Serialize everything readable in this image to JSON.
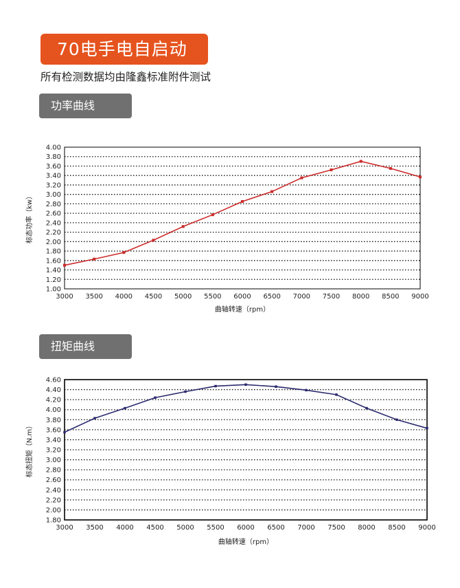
{
  "header": {
    "title": "70电手电自启动",
    "subtitle": "所有检测数据均由隆鑫标准附件测试"
  },
  "sections": {
    "power": {
      "tab_label": "功率曲线"
    },
    "torque": {
      "tab_label": "扭矩曲线"
    }
  },
  "chart_data": [
    {
      "type": "line",
      "title": "",
      "xlabel": "曲轴转速（rpm）",
      "ylabel": "标态功率（kw）",
      "x": [
        3000,
        3500,
        4000,
        4500,
        5000,
        5500,
        6000,
        6500,
        7000,
        7500,
        8000,
        8500,
        9000
      ],
      "xlim": [
        3000,
        9000
      ],
      "ylim": [
        1.0,
        4.0
      ],
      "yticks": [
        "1.00",
        "1.20",
        "1.40",
        "1.60",
        "1.80",
        "2.00",
        "2.20",
        "2.40",
        "2.60",
        "2.80",
        "3.00",
        "3.20",
        "3.40",
        "3.60",
        "3.80",
        "4.00"
      ],
      "grid": "horizontal-dotted",
      "color": "#cc2a2a",
      "series": [
        {
          "values": [
            1.5,
            1.63,
            1.77,
            2.03,
            2.32,
            2.57,
            2.85,
            3.06,
            3.35,
            3.52,
            3.7,
            3.55,
            3.37
          ]
        }
      ]
    },
    {
      "type": "line",
      "title": "",
      "xlabel": "曲轴转速（rpm）",
      "ylabel": "标态扭矩（N.m）",
      "x": [
        3000,
        3500,
        4000,
        4500,
        5000,
        5500,
        6000,
        6500,
        7000,
        7500,
        8000,
        8500,
        9000
      ],
      "xlim": [
        3000,
        9000
      ],
      "ylim": [
        1.8,
        4.6
      ],
      "yticks": [
        "1.80",
        "2.00",
        "2.20",
        "2.40",
        "2.60",
        "2.80",
        "3.00",
        "3.20",
        "3.40",
        "3.60",
        "3.80",
        "4.00",
        "4.20",
        "4.40",
        "4.60"
      ],
      "grid": "horizontal-dotted",
      "color": "#2a2a6e",
      "series": [
        {
          "values": [
            3.55,
            3.83,
            4.03,
            4.24,
            4.36,
            4.47,
            4.5,
            4.46,
            4.39,
            4.3,
            4.03,
            3.8,
            3.63
          ]
        }
      ]
    }
  ]
}
